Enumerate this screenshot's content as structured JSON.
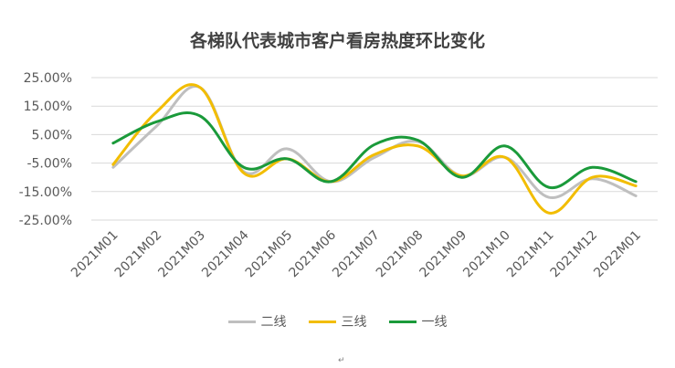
{
  "chart_data": {
    "type": "line",
    "title": "各梯队代表城市客户看房热度环比变化",
    "xlabel": "",
    "ylabel": "",
    "categories": [
      "2021M01",
      "2021M02",
      "2021M03",
      "2021M04",
      "2021M05",
      "2021M06",
      "2021M07",
      "2021M08",
      "2021M09",
      "2021M10",
      "2021M11",
      "2021M12",
      "2022M01"
    ],
    "y_ticks": [
      "25.00%",
      "15.00%",
      "5.00%",
      "-5.00%",
      "-15.00%",
      "-25.00%"
    ],
    "ylim": [
      -25,
      25
    ],
    "grid": true,
    "legend_position": "bottom",
    "series": [
      {
        "name": "二线",
        "color": "#bfbfbf",
        "values": [
          -6.5,
          8,
          21.5,
          -8,
          0,
          -11.5,
          -3,
          2.5,
          -9.5,
          -3,
          -17,
          -10.5,
          -16.5
        ]
      },
      {
        "name": "三线",
        "color": "#f2bd00",
        "values": [
          -5.5,
          13,
          21.5,
          -8.5,
          -3.5,
          -11.5,
          -2,
          1,
          -9.5,
          -3,
          -22.5,
          -10,
          -13
        ]
      },
      {
        "name": "一线",
        "color": "#1a9a3a",
        "values": [
          2,
          9.5,
          11.5,
          -6.5,
          -3.5,
          -11.5,
          1.5,
          3,
          -10,
          1,
          -13.5,
          -6.5,
          -11.5
        ]
      }
    ]
  },
  "footer_mark": "↵"
}
